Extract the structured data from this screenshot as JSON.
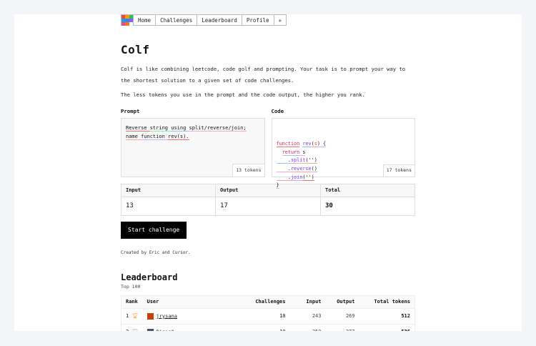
{
  "nav": {
    "items": [
      "Home",
      "Challenges",
      "Leaderboard",
      "Profile"
    ],
    "theme_icon": "✳",
    "logo_colors": [
      "#ef4444",
      "#f59e0b",
      "#22c55e",
      "#0ea5e9",
      "#3b82f6",
      "#8b5cf6",
      "#ec4899",
      "#f97316",
      "#ffffff"
    ]
  },
  "title": "Colf",
  "intro": [
    "Colf is like combining leetcode, code golf and prompting. Your task is to prompt your way to the shortest solution to a given set of code challenges.",
    "The less tokens you use in the prompt and the code output, the higher you rank."
  ],
  "prompt": {
    "label": "Prompt",
    "text": "Reverse string using split/reverse/join; name function rev(s).",
    "tokens": "13 tokens"
  },
  "code": {
    "label": "Code",
    "lines": [
      [
        {
          "t": "function",
          "c": "#e11d48"
        },
        {
          "t": " "
        },
        {
          "t": "rev",
          "c": "#7c3aed"
        },
        {
          "t": "("
        },
        {
          "t": "s",
          "c": "#ea580c"
        },
        {
          "t": ") {"
        }
      ],
      [
        {
          "t": "  "
        },
        {
          "t": "return",
          "c": "#e11d48"
        },
        {
          "t": " s"
        }
      ],
      [
        {
          "t": "    ."
        },
        {
          "t": "split",
          "c": "#7c3aed"
        },
        {
          "t": "('')"
        }
      ],
      [
        {
          "t": "    ."
        },
        {
          "t": "reverse",
          "c": "#7c3aed"
        },
        {
          "t": "()"
        }
      ],
      [
        {
          "t": "    ."
        },
        {
          "t": "join",
          "c": "#7c3aed"
        },
        {
          "t": "('')"
        }
      ],
      [
        {
          "t": "}"
        }
      ]
    ],
    "tokens": "17 tokens"
  },
  "stats": {
    "headers": [
      "Input",
      "Output",
      "Total"
    ],
    "values": [
      "13",
      "17",
      "30"
    ]
  },
  "start_button": "Start challenge",
  "credit": {
    "prefix": "Created by ",
    "a": "Eric",
    "mid": " and ",
    "b": "Cursor",
    "suffix": "."
  },
  "leaderboard": {
    "title": "Leaderboard",
    "subtitle": "Top 100",
    "headers": [
      "Rank",
      "User",
      "Challenges",
      "Input",
      "Output",
      "Total tokens"
    ],
    "rows": [
      {
        "rank": "1",
        "trophy": "#f59e0b",
        "user": "jrysana",
        "avatar": "#c2410c",
        "challenges": "10",
        "input": "243",
        "output": "269",
        "total": "512"
      },
      {
        "rank": "2",
        "trophy": "#9ca3af",
        "user": "Rigos0",
        "avatar": "#475569",
        "challenges": "10",
        "input": "259",
        "output": "277",
        "total": "536"
      }
    ]
  }
}
